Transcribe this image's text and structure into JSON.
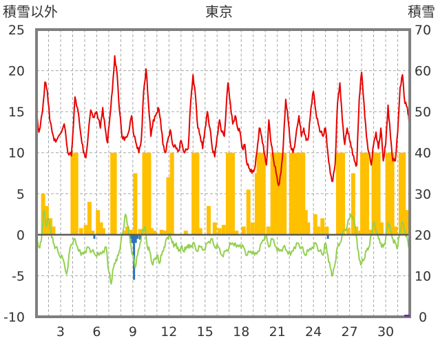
{
  "chart_data": {
    "type": "line",
    "title": "東京",
    "left_axis_label": "積雪以外",
    "right_axis_label": "積雪",
    "ylim_left": [
      -10,
      25
    ],
    "ylim_right": [
      0,
      70
    ],
    "yticks_left": [
      "25",
      "20",
      "15",
      "10",
      "5",
      "0",
      "-5",
      "-10"
    ],
    "yticks_right": [
      "70",
      "60",
      "50",
      "40",
      "30",
      "20",
      "10",
      "0"
    ],
    "xlim": [
      1,
      32
    ],
    "xticks": [
      "3",
      "6",
      "9",
      "12",
      "15",
      "18",
      "21",
      "24",
      "27",
      "30"
    ],
    "grid": true,
    "colors": {
      "red_line": "#e60000",
      "green_line": "#92d050",
      "orange_bars": "#ffc000",
      "blue_bars": "#2e75b6",
      "frame": "#7f7f7f",
      "grid": "#a6a6a6",
      "zero_line": "#595959"
    },
    "red_keypoints": [
      [
        1.0,
        14.7
      ],
      [
        1.2,
        12.5
      ],
      [
        1.5,
        15.0
      ],
      [
        1.7,
        18.6
      ],
      [
        1.9,
        17.5
      ],
      [
        2.1,
        14.0
      ],
      [
        2.4,
        12.0
      ],
      [
        2.6,
        11.3
      ],
      [
        3.3,
        13.5
      ],
      [
        3.6,
        10.0
      ],
      [
        3.9,
        9.6
      ],
      [
        4.0,
        12.0
      ],
      [
        4.2,
        16.8
      ],
      [
        4.4,
        15.5
      ],
      [
        4.7,
        12.0
      ],
      [
        4.9,
        10.0
      ],
      [
        5.1,
        9.4
      ],
      [
        5.5,
        15.2
      ],
      [
        5.8,
        14.3
      ],
      [
        6.0,
        15.0
      ],
      [
        6.3,
        13.0
      ],
      [
        6.5,
        15.5
      ],
      [
        6.7,
        13.0
      ],
      [
        6.9,
        11.2
      ],
      [
        7.1,
        14.5
      ],
      [
        7.3,
        17.5
      ],
      [
        7.5,
        21.8
      ],
      [
        7.7,
        19.5
      ],
      [
        7.9,
        15.0
      ],
      [
        8.1,
        12.0
      ],
      [
        8.3,
        11.5
      ],
      [
        8.6,
        12.3
      ],
      [
        8.9,
        14.5
      ],
      [
        9.1,
        12.0
      ],
      [
        9.3,
        11.0
      ],
      [
        9.5,
        10.0
      ],
      [
        9.7,
        11.5
      ],
      [
        9.9,
        17.5
      ],
      [
        10.1,
        20.2
      ],
      [
        10.3,
        16.0
      ],
      [
        10.5,
        12.0
      ],
      [
        10.7,
        14.0
      ],
      [
        10.9,
        14.5
      ],
      [
        11.1,
        15.5
      ],
      [
        11.3,
        14.0
      ],
      [
        11.5,
        11.0
      ],
      [
        11.7,
        10.0
      ],
      [
        11.9,
        11.5
      ],
      [
        12.1,
        12.8
      ],
      [
        12.3,
        11.0
      ],
      [
        12.6,
        10.5
      ],
      [
        12.8,
        10.2
      ],
      [
        13.0,
        11.5
      ],
      [
        13.3,
        10.0
      ],
      [
        13.6,
        10.5
      ],
      [
        13.8,
        16.0
      ],
      [
        14.0,
        19.5
      ],
      [
        14.2,
        17.0
      ],
      [
        14.4,
        13.0
      ],
      [
        14.6,
        12.0
      ],
      [
        14.8,
        10.5
      ],
      [
        15.0,
        13.0
      ],
      [
        15.2,
        15.0
      ],
      [
        15.4,
        13.0
      ],
      [
        15.6,
        10.5
      ],
      [
        15.8,
        9.5
      ],
      [
        16.0,
        12.0
      ],
      [
        16.2,
        14.0
      ],
      [
        16.4,
        12.5
      ],
      [
        16.6,
        12.0
      ],
      [
        16.9,
        18.5
      ],
      [
        17.1,
        16.0
      ],
      [
        17.3,
        13.5
      ],
      [
        17.5,
        14.5
      ],
      [
        17.7,
        13.0
      ],
      [
        17.9,
        12.5
      ],
      [
        18.1,
        10.5
      ],
      [
        18.3,
        11.0
      ],
      [
        18.5,
        8.5
      ],
      [
        18.7,
        8.0
      ],
      [
        18.9,
        7.5
      ],
      [
        19.1,
        8.0
      ],
      [
        19.3,
        10.0
      ],
      [
        19.5,
        13.0
      ],
      [
        19.7,
        12.0
      ],
      [
        19.9,
        10.0
      ],
      [
        20.1,
        8.5
      ],
      [
        20.3,
        14.0
      ],
      [
        20.5,
        11.0
      ],
      [
        20.7,
        9.0
      ],
      [
        20.9,
        7.5
      ],
      [
        21.1,
        6.0
      ],
      [
        21.3,
        7.5
      ],
      [
        21.5,
        11.0
      ],
      [
        21.7,
        16.5
      ],
      [
        21.9,
        14.0
      ],
      [
        22.1,
        11.0
      ],
      [
        22.3,
        10.0
      ],
      [
        22.5,
        11.5
      ],
      [
        22.8,
        14.5
      ],
      [
        23.0,
        12.0
      ],
      [
        23.2,
        13.0
      ],
      [
        23.4,
        11.5
      ],
      [
        23.6,
        12.0
      ],
      [
        23.8,
        15.5
      ],
      [
        24.0,
        17.5
      ],
      [
        24.2,
        15.0
      ],
      [
        24.4,
        13.5
      ],
      [
        24.6,
        12.5
      ],
      [
        24.8,
        12.0
      ],
      [
        25.0,
        13.0
      ],
      [
        25.2,
        10.0
      ],
      [
        25.4,
        7.5
      ],
      [
        25.6,
        6.5
      ],
      [
        25.8,
        8.5
      ],
      [
        26.0,
        16.0
      ],
      [
        26.2,
        18.5
      ],
      [
        26.4,
        14.0
      ],
      [
        26.6,
        11.0
      ],
      [
        26.8,
        13.0
      ],
      [
        27.0,
        11.5
      ],
      [
        27.2,
        10.5
      ],
      [
        27.4,
        9.0
      ],
      [
        27.6,
        8.5
      ],
      [
        27.8,
        16.5
      ],
      [
        28.0,
        19.8
      ],
      [
        28.2,
        16.0
      ],
      [
        28.4,
        12.0
      ],
      [
        28.6,
        10.0
      ],
      [
        28.8,
        8.5
      ],
      [
        29.0,
        11.0
      ],
      [
        29.2,
        12.5
      ],
      [
        29.4,
        10.5
      ],
      [
        29.6,
        13.0
      ],
      [
        29.8,
        9.0
      ],
      [
        30.0,
        11.0
      ],
      [
        30.2,
        15.8
      ],
      [
        30.4,
        12.0
      ],
      [
        30.6,
        9.0
      ],
      [
        30.8,
        9.0
      ],
      [
        31.0,
        12.5
      ],
      [
        31.2,
        18.0
      ],
      [
        31.4,
        19.5
      ],
      [
        31.6,
        16.0
      ],
      [
        31.8,
        15.5
      ],
      [
        31.95,
        13.6
      ]
    ],
    "red_gaps": [
      [
        2.62,
        3.25
      ]
    ],
    "green_keypoints": [
      [
        1.0,
        -0.5
      ],
      [
        1.2,
        -1.5
      ],
      [
        1.4,
        -0.8
      ],
      [
        1.6,
        3.0
      ],
      [
        1.8,
        1.0
      ],
      [
        2.0,
        2.0
      ],
      [
        2.2,
        0.5
      ],
      [
        2.4,
        -1.0
      ],
      [
        2.6,
        -1.5
      ],
      [
        2.9,
        -2.5
      ],
      [
        3.2,
        -3.0
      ],
      [
        3.5,
        -4.8
      ],
      [
        3.8,
        -1.5
      ],
      [
        4.1,
        -0.5
      ],
      [
        4.4,
        -1.5
      ],
      [
        4.7,
        -2.5
      ],
      [
        5.0,
        -2.0
      ],
      [
        5.3,
        -1.5
      ],
      [
        5.6,
        -2.0
      ],
      [
        5.9,
        -2.5
      ],
      [
        6.2,
        -2.5
      ],
      [
        6.5,
        -2.0
      ],
      [
        6.8,
        -1.5
      ],
      [
        7.0,
        -4.5
      ],
      [
        7.2,
        -6.0
      ],
      [
        7.4,
        -4.0
      ],
      [
        7.6,
        -3.0
      ],
      [
        7.8,
        -2.5
      ],
      [
        8.0,
        -1.0
      ],
      [
        8.2,
        0.5
      ],
      [
        8.4,
        2.5
      ],
      [
        8.6,
        1.0
      ],
      [
        8.8,
        -1.0
      ],
      [
        9.0,
        -2.5
      ],
      [
        9.2,
        -4.0
      ],
      [
        9.4,
        -2.5
      ],
      [
        9.6,
        -1.0
      ],
      [
        9.8,
        0.5
      ],
      [
        10.0,
        1.0
      ],
      [
        10.2,
        -1.5
      ],
      [
        10.4,
        -2.0
      ],
      [
        10.6,
        -3.5
      ],
      [
        10.8,
        -3.0
      ],
      [
        11.0,
        -2.5
      ],
      [
        11.2,
        -3.5
      ],
      [
        11.4,
        -2.5
      ],
      [
        11.6,
        -1.5
      ],
      [
        11.8,
        -0.5
      ],
      [
        12.0,
        0.0
      ],
      [
        12.2,
        -0.5
      ],
      [
        12.4,
        -1.5
      ],
      [
        12.6,
        -1.0
      ],
      [
        12.8,
        -2.0
      ],
      [
        13.0,
        -1.5
      ],
      [
        13.2,
        -2.0
      ],
      [
        13.4,
        -1.8
      ],
      [
        13.6,
        -1.2
      ],
      [
        13.8,
        -1.5
      ],
      [
        14.0,
        -1.0
      ],
      [
        14.3,
        -2.0
      ],
      [
        14.6,
        -1.5
      ],
      [
        14.9,
        -1.8
      ],
      [
        15.2,
        -1.0
      ],
      [
        15.5,
        -0.5
      ],
      [
        15.8,
        -1.5
      ],
      [
        16.1,
        -1.5
      ],
      [
        16.4,
        -2.5
      ],
      [
        16.7,
        -2.0
      ],
      [
        17.0,
        -1.5
      ],
      [
        17.3,
        -1.0
      ],
      [
        17.6,
        -1.5
      ],
      [
        17.9,
        -1.2
      ],
      [
        18.2,
        -1.5
      ],
      [
        18.5,
        -2.5
      ],
      [
        18.8,
        -2.0
      ],
      [
        19.1,
        -2.5
      ],
      [
        19.4,
        -2.0
      ],
      [
        19.7,
        -1.0
      ],
      [
        20.0,
        0.0
      ],
      [
        20.3,
        -1.5
      ],
      [
        20.6,
        -0.5
      ],
      [
        20.9,
        -1.5
      ],
      [
        21.2,
        -2.0
      ],
      [
        21.5,
        -1.5
      ],
      [
        21.8,
        -2.0
      ],
      [
        22.1,
        -2.5
      ],
      [
        22.4,
        -1.5
      ],
      [
        22.7,
        -1.0
      ],
      [
        23.0,
        -1.5
      ],
      [
        23.3,
        -2.5
      ],
      [
        23.6,
        -2.0
      ],
      [
        23.9,
        -1.5
      ],
      [
        24.2,
        -1.0
      ],
      [
        24.5,
        -2.0
      ],
      [
        24.8,
        -2.5
      ],
      [
        25.0,
        -1.0
      ],
      [
        25.2,
        -2.5
      ],
      [
        25.4,
        -4.0
      ],
      [
        25.6,
        -5.0
      ],
      [
        25.8,
        -3.5
      ],
      [
        26.0,
        -1.5
      ],
      [
        26.2,
        -1.0
      ],
      [
        26.5,
        0.5
      ],
      [
        26.8,
        1.0
      ],
      [
        27.1,
        2.5
      ],
      [
        27.4,
        1.5
      ],
      [
        27.6,
        -0.5
      ],
      [
        27.8,
        -3.0
      ],
      [
        28.0,
        -3.5
      ],
      [
        28.2,
        -3.0
      ],
      [
        28.4,
        -2.0
      ],
      [
        28.6,
        -1.5
      ],
      [
        28.8,
        0.0
      ],
      [
        29.0,
        1.5
      ],
      [
        29.2,
        0.5
      ],
      [
        29.4,
        -0.5
      ],
      [
        29.6,
        -1.0
      ],
      [
        29.8,
        -1.5
      ],
      [
        30.0,
        -0.5
      ],
      [
        30.2,
        1.5
      ],
      [
        30.4,
        0.5
      ],
      [
        30.6,
        -0.5
      ],
      [
        30.8,
        -1.0
      ],
      [
        31.0,
        -1.5
      ],
      [
        31.2,
        0.5
      ],
      [
        31.4,
        1.5
      ],
      [
        31.6,
        0.5
      ],
      [
        31.8,
        -0.5
      ],
      [
        31.95,
        -1.5
      ]
    ],
    "green_gaps": [
      [
        28.05,
        28.25
      ]
    ],
    "orange_bars": [
      {
        "x": 1.55,
        "v": 5.0
      },
      {
        "x": 1.85,
        "v": 3.5
      },
      {
        "x": 2.15,
        "v": 2.0
      },
      {
        "x": 2.4,
        "v": 1.0
      },
      {
        "x": 4.0,
        "v": 10
      },
      {
        "x": 4.15,
        "v": 10
      },
      {
        "x": 4.3,
        "v": 10
      },
      {
        "x": 4.7,
        "v": 0.8
      },
      {
        "x": 5.1,
        "v": 1.2
      },
      {
        "x": 5.4,
        "v": 4.0
      },
      {
        "x": 5.65,
        "v": 0.5
      },
      {
        "x": 6.1,
        "v": 3.0
      },
      {
        "x": 6.35,
        "v": 1.5
      },
      {
        "x": 6.55,
        "v": 0.8
      },
      {
        "x": 7.3,
        "v": 10
      },
      {
        "x": 7.5,
        "v": 10
      },
      {
        "x": 8.3,
        "v": 0.5
      },
      {
        "x": 8.55,
        "v": 1.0
      },
      {
        "x": 8.85,
        "v": 0.6
      },
      {
        "x": 9.2,
        "v": 7.5
      },
      {
        "x": 9.6,
        "v": 0.7
      },
      {
        "x": 9.95,
        "v": 10
      },
      {
        "x": 10.15,
        "v": 10
      },
      {
        "x": 10.35,
        "v": 10
      },
      {
        "x": 10.55,
        "v": 0.8
      },
      {
        "x": 10.8,
        "v": 0.5
      },
      {
        "x": 11.4,
        "v": 0.6
      },
      {
        "x": 11.75,
        "v": 0.5
      },
      {
        "x": 11.95,
        "v": 7.0
      },
      {
        "x": 12.25,
        "v": 10
      },
      {
        "x": 13.4,
        "v": 0.5
      },
      {
        "x": 14.05,
        "v": 10
      },
      {
        "x": 14.35,
        "v": 10
      },
      {
        "x": 14.6,
        "v": 0.8
      },
      {
        "x": 15.3,
        "v": 3.5
      },
      {
        "x": 15.8,
        "v": 1.5
      },
      {
        "x": 16.2,
        "v": 0.8
      },
      {
        "x": 16.55,
        "v": 1.2
      },
      {
        "x": 16.9,
        "v": 10
      },
      {
        "x": 17.1,
        "v": 10
      },
      {
        "x": 17.3,
        "v": 10
      },
      {
        "x": 17.6,
        "v": 0.5
      },
      {
        "x": 18.2,
        "v": 1.0
      },
      {
        "x": 18.6,
        "v": 5.5
      },
      {
        "x": 18.95,
        "v": 1.5
      },
      {
        "x": 19.3,
        "v": 7.5
      },
      {
        "x": 19.45,
        "v": 10
      },
      {
        "x": 19.65,
        "v": 10
      },
      {
        "x": 19.85,
        "v": 10
      },
      {
        "x": 20.25,
        "v": 1.0
      },
      {
        "x": 20.6,
        "v": 10
      },
      {
        "x": 20.8,
        "v": 10
      },
      {
        "x": 21.05,
        "v": 10
      },
      {
        "x": 21.3,
        "v": 10
      },
      {
        "x": 21.6,
        "v": 10
      },
      {
        "x": 22.15,
        "v": 10
      },
      {
        "x": 22.35,
        "v": 10
      },
      {
        "x": 22.6,
        "v": 10
      },
      {
        "x": 22.9,
        "v": 10
      },
      {
        "x": 23.15,
        "v": 10
      },
      {
        "x": 23.35,
        "v": 3.0
      },
      {
        "x": 23.55,
        "v": 1.5
      },
      {
        "x": 24.15,
        "v": 2.5
      },
      {
        "x": 24.4,
        "v": 1.0
      },
      {
        "x": 24.75,
        "v": 2.0
      },
      {
        "x": 25.1,
        "v": 1.0
      },
      {
        "x": 26.05,
        "v": 10
      },
      {
        "x": 26.25,
        "v": 10
      },
      {
        "x": 26.45,
        "v": 10
      },
      {
        "x": 26.9,
        "v": 0.8
      },
      {
        "x": 27.3,
        "v": 7.5
      },
      {
        "x": 27.55,
        "v": 1.0
      },
      {
        "x": 27.8,
        "v": 0.5
      },
      {
        "x": 28.05,
        "v": 10
      },
      {
        "x": 28.25,
        "v": 10
      },
      {
        "x": 28.45,
        "v": 10
      },
      {
        "x": 28.8,
        "v": 0.6
      },
      {
        "x": 29.0,
        "v": 10
      },
      {
        "x": 29.2,
        "v": 10
      },
      {
        "x": 29.4,
        "v": 10
      },
      {
        "x": 29.65,
        "v": 1.5
      },
      {
        "x": 30.15,
        "v": 10
      },
      {
        "x": 30.35,
        "v": 10
      },
      {
        "x": 30.55,
        "v": 10
      },
      {
        "x": 30.8,
        "v": 1.0
      },
      {
        "x": 31.25,
        "v": 10
      },
      {
        "x": 31.5,
        "v": 10
      },
      {
        "x": 31.75,
        "v": 3.0
      }
    ],
    "blue_bars": [
      {
        "x": 5.8,
        "v": -0.5
      },
      {
        "x": 8.8,
        "v": -0.5
      },
      {
        "x": 8.95,
        "v": -1.0
      },
      {
        "x": 9.1,
        "v": -5.5
      },
      {
        "x": 9.25,
        "v": -1.0
      },
      {
        "x": 9.4,
        "v": -0.5
      },
      {
        "x": 9.6,
        "v": -0.6
      },
      {
        "x": 25.2,
        "v": -0.5
      }
    ]
  }
}
